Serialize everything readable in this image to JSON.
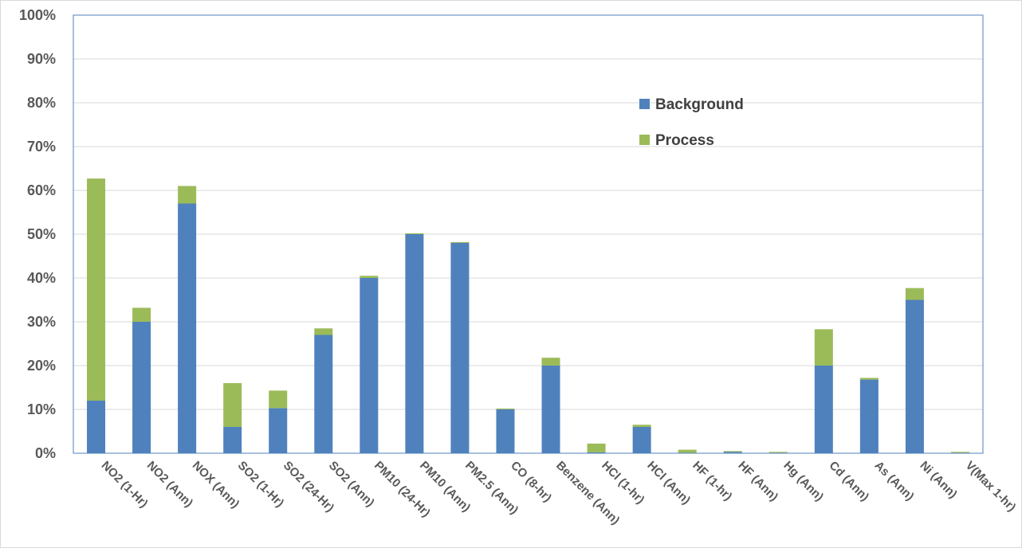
{
  "chart_data": {
    "type": "bar",
    "stacked": true,
    "categories": [
      "NO2 (1-Hr)",
      "NO2 (Ann)",
      "NOX (Ann)",
      "SO2 (1-Hr)",
      "SO2 (24-Hr)",
      "SO2 (Ann)",
      "PM10 (24-Hr)",
      "PM10 (Ann)",
      "PM2.5 (Ann)",
      "CO (8-hr)",
      "Benzene (Ann)",
      "HCl (1-hr)",
      "HCl (Ann)",
      "HF (1-hr)",
      "HF (Ann)",
      "Hg (Ann)",
      "Cd (Ann)",
      "As (Ann)",
      "Ni (Ann)",
      "V(Max 1-hr)"
    ],
    "series": [
      {
        "name": "Background",
        "color": "#4f81bd",
        "values": [
          12,
          30,
          57,
          6,
          10.3,
          27,
          40,
          50,
          48,
          10,
          20,
          0.2,
          6,
          0.1,
          0.3,
          0.1,
          20,
          16.8,
          35,
          0.1
        ]
      },
      {
        "name": "Process",
        "color": "#9bbb59",
        "values": [
          50.7,
          3.2,
          4,
          10,
          4,
          1.5,
          0.5,
          0.2,
          0.2,
          0.2,
          1.8,
          2,
          0.5,
          0.7,
          0.2,
          0.2,
          8.3,
          0.4,
          2.7,
          0.2
        ]
      }
    ],
    "yticks": [
      "0%",
      "10%",
      "20%",
      "30%",
      "40%",
      "50%",
      "60%",
      "70%",
      "80%",
      "90%",
      "100%"
    ],
    "ylim": [
      0,
      100
    ],
    "grid": true,
    "legend_position": "upper-right-inside",
    "title": "",
    "xlabel": "",
    "ylabel": ""
  }
}
